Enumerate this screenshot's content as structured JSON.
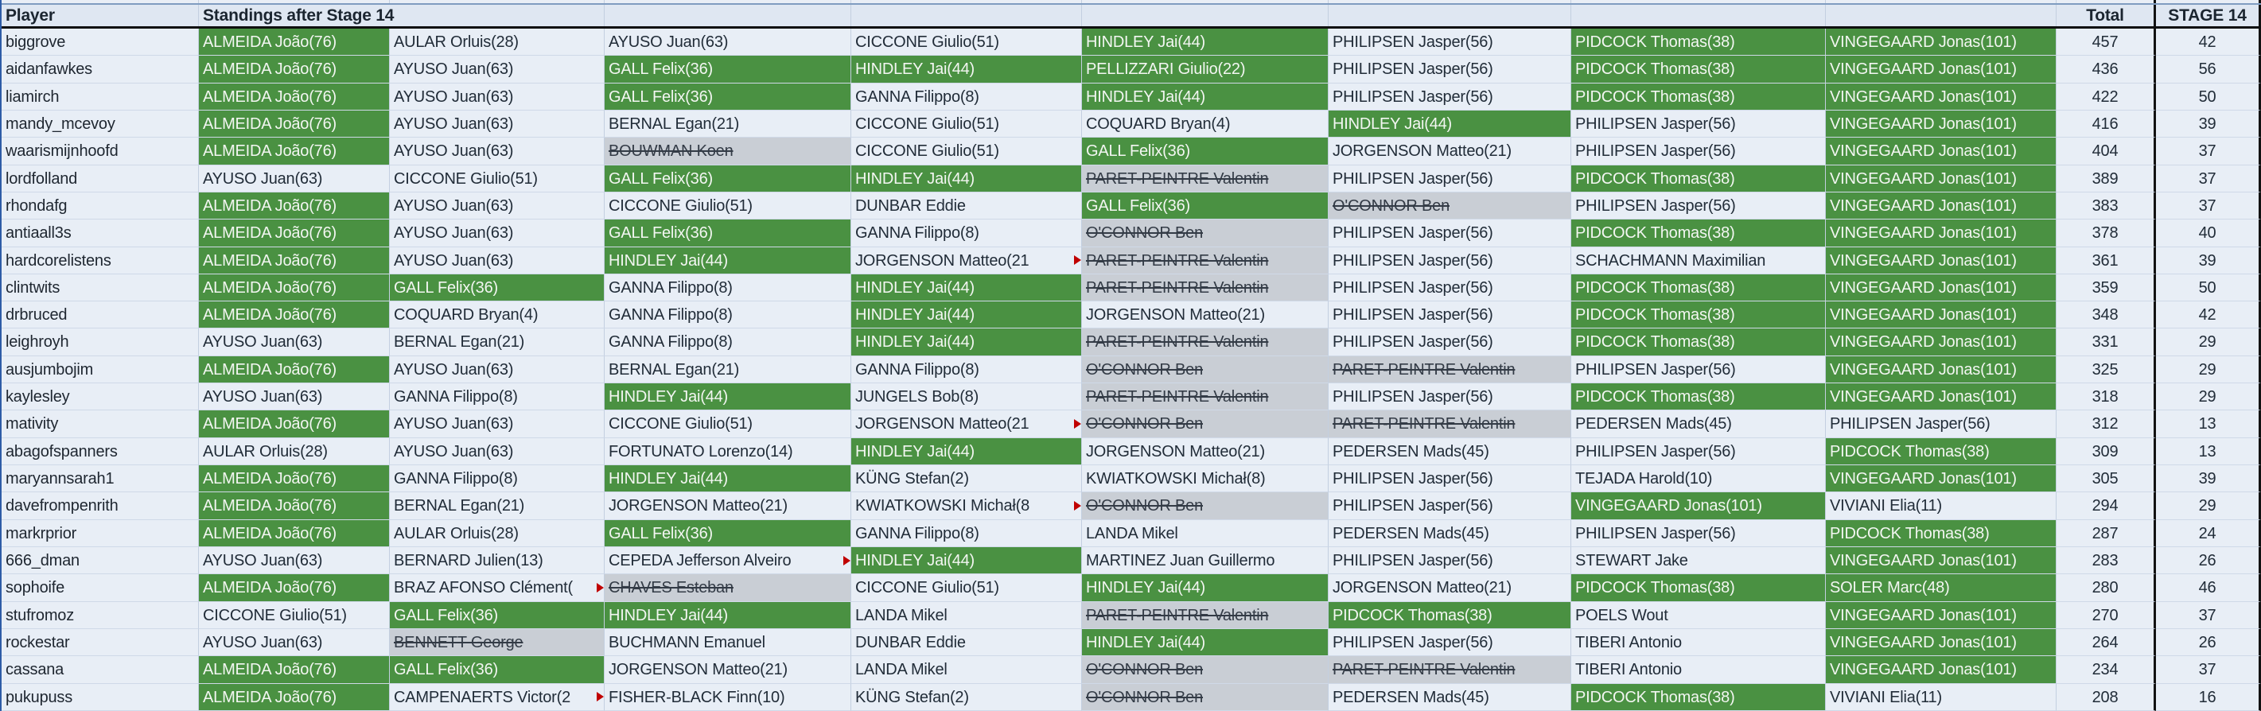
{
  "header": {
    "player": "Player",
    "standings_title": "Standings after Stage 14",
    "total": "Total",
    "stage": "STAGE 14"
  },
  "legend": {
    "green_cell_meaning_color": "#4a9142",
    "eliminated_cell_color": "#c9ced5",
    "truncation_marker_color": "#c00000"
  },
  "rows": [
    {
      "player": "biggrove",
      "picks": [
        {
          "t": "ALMEIDA João(76)",
          "s": "g"
        },
        {
          "t": "AULAR Orluis(28)",
          "s": "n"
        },
        {
          "t": "AYUSO Juan(63)",
          "s": "n"
        },
        {
          "t": "CICCONE Giulio(51)",
          "s": "n"
        },
        {
          "t": "HINDLEY Jai(44)",
          "s": "g"
        },
        {
          "t": "PHILIPSEN Jasper(56)",
          "s": "n"
        },
        {
          "t": "PIDCOCK Thomas(38)",
          "s": "g"
        },
        {
          "t": "VINGEGAARD Jonas(101)",
          "s": "g"
        }
      ],
      "total": "457",
      "stage": "42"
    },
    {
      "player": "aidanfawkes",
      "picks": [
        {
          "t": "ALMEIDA João(76)",
          "s": "g"
        },
        {
          "t": "AYUSO Juan(63)",
          "s": "n"
        },
        {
          "t": "GALL Felix(36)",
          "s": "g"
        },
        {
          "t": "HINDLEY Jai(44)",
          "s": "g"
        },
        {
          "t": "PELLIZZARI Giulio(22)",
          "s": "g"
        },
        {
          "t": "PHILIPSEN Jasper(56)",
          "s": "n"
        },
        {
          "t": "PIDCOCK Thomas(38)",
          "s": "g"
        },
        {
          "t": "VINGEGAARD Jonas(101)",
          "s": "g"
        }
      ],
      "total": "436",
      "stage": "56"
    },
    {
      "player": "liamirch",
      "picks": [
        {
          "t": "ALMEIDA João(76)",
          "s": "g"
        },
        {
          "t": "AYUSO Juan(63)",
          "s": "n"
        },
        {
          "t": "GALL Felix(36)",
          "s": "g"
        },
        {
          "t": "GANNA Filippo(8)",
          "s": "n"
        },
        {
          "t": "HINDLEY Jai(44)",
          "s": "g"
        },
        {
          "t": "PHILIPSEN Jasper(56)",
          "s": "n"
        },
        {
          "t": "PIDCOCK Thomas(38)",
          "s": "g"
        },
        {
          "t": "VINGEGAARD Jonas(101)",
          "s": "g"
        }
      ],
      "total": "422",
      "stage": "50"
    },
    {
      "player": "mandy_mcevoy",
      "picks": [
        {
          "t": "ALMEIDA João(76)",
          "s": "g"
        },
        {
          "t": "AYUSO Juan(63)",
          "s": "n"
        },
        {
          "t": "BERNAL Egan(21)",
          "s": "n"
        },
        {
          "t": "CICCONE Giulio(51)",
          "s": "n"
        },
        {
          "t": "COQUARD Bryan(4)",
          "s": "n"
        },
        {
          "t": "HINDLEY Jai(44)",
          "s": "g"
        },
        {
          "t": "PHILIPSEN Jasper(56)",
          "s": "n"
        },
        {
          "t": "VINGEGAARD Jonas(101)",
          "s": "g"
        }
      ],
      "total": "416",
      "stage": "39"
    },
    {
      "player": "waarismijnhoofd",
      "picks": [
        {
          "t": "ALMEIDA João(76)",
          "s": "g"
        },
        {
          "t": "AYUSO Juan(63)",
          "s": "n"
        },
        {
          "t": "BOUWMAN Koen",
          "s": "x"
        },
        {
          "t": "CICCONE Giulio(51)",
          "s": "n"
        },
        {
          "t": "GALL Felix(36)",
          "s": "g"
        },
        {
          "t": "JORGENSON Matteo(21)",
          "s": "n"
        },
        {
          "t": "PHILIPSEN Jasper(56)",
          "s": "n"
        },
        {
          "t": "VINGEGAARD Jonas(101)",
          "s": "g"
        }
      ],
      "total": "404",
      "stage": "37"
    },
    {
      "player": "lordfolland",
      "picks": [
        {
          "t": "AYUSO Juan(63)",
          "s": "n"
        },
        {
          "t": "CICCONE Giulio(51)",
          "s": "n"
        },
        {
          "t": "GALL Felix(36)",
          "s": "g"
        },
        {
          "t": "HINDLEY Jai(44)",
          "s": "g"
        },
        {
          "t": "PARET-PEINTRE Valentin",
          "s": "x"
        },
        {
          "t": "PHILIPSEN Jasper(56)",
          "s": "n"
        },
        {
          "t": "PIDCOCK Thomas(38)",
          "s": "g"
        },
        {
          "t": "VINGEGAARD Jonas(101)",
          "s": "g"
        }
      ],
      "total": "389",
      "stage": "37"
    },
    {
      "player": "rhondafg",
      "picks": [
        {
          "t": "ALMEIDA João(76)",
          "s": "g"
        },
        {
          "t": "AYUSO Juan(63)",
          "s": "n"
        },
        {
          "t": "CICCONE Giulio(51)",
          "s": "n"
        },
        {
          "t": "DUNBAR Eddie",
          "s": "n"
        },
        {
          "t": "GALL Felix(36)",
          "s": "g"
        },
        {
          "t": "O'CONNOR Ben",
          "s": "x"
        },
        {
          "t": "PHILIPSEN Jasper(56)",
          "s": "n"
        },
        {
          "t": "VINGEGAARD Jonas(101)",
          "s": "g"
        }
      ],
      "total": "383",
      "stage": "37"
    },
    {
      "player": "antiaall3s",
      "picks": [
        {
          "t": "ALMEIDA João(76)",
          "s": "g"
        },
        {
          "t": "AYUSO Juan(63)",
          "s": "n"
        },
        {
          "t": "GALL Felix(36)",
          "s": "g"
        },
        {
          "t": "GANNA Filippo(8)",
          "s": "n"
        },
        {
          "t": "O'CONNOR Ben",
          "s": "x"
        },
        {
          "t": "PHILIPSEN Jasper(56)",
          "s": "n"
        },
        {
          "t": "PIDCOCK Thomas(38)",
          "s": "g"
        },
        {
          "t": "VINGEGAARD Jonas(101)",
          "s": "g"
        }
      ],
      "total": "378",
      "stage": "40"
    },
    {
      "player": "hardcorelistens",
      "picks": [
        {
          "t": "ALMEIDA João(76)",
          "s": "g"
        },
        {
          "t": "AYUSO Juan(63)",
          "s": "n"
        },
        {
          "t": "HINDLEY Jai(44)",
          "s": "g"
        },
        {
          "t": "JORGENSON Matteo(21",
          "s": "n",
          "cut": true
        },
        {
          "t": "PARET-PEINTRE Valentin",
          "s": "x"
        },
        {
          "t": "PHILIPSEN Jasper(56)",
          "s": "n"
        },
        {
          "t": "SCHACHMANN Maximilian",
          "s": "n"
        },
        {
          "t": "VINGEGAARD Jonas(101)",
          "s": "g"
        }
      ],
      "total": "361",
      "stage": "39"
    },
    {
      "player": "clintwits",
      "picks": [
        {
          "t": "ALMEIDA João(76)",
          "s": "g"
        },
        {
          "t": "GALL Felix(36)",
          "s": "g"
        },
        {
          "t": "GANNA Filippo(8)",
          "s": "n"
        },
        {
          "t": "HINDLEY Jai(44)",
          "s": "g"
        },
        {
          "t": "PARET-PEINTRE Valentin",
          "s": "x"
        },
        {
          "t": "PHILIPSEN Jasper(56)",
          "s": "n"
        },
        {
          "t": "PIDCOCK Thomas(38)",
          "s": "g"
        },
        {
          "t": "VINGEGAARD Jonas(101)",
          "s": "g"
        }
      ],
      "total": "359",
      "stage": "50"
    },
    {
      "player": "drbruced",
      "picks": [
        {
          "t": "ALMEIDA João(76)",
          "s": "g"
        },
        {
          "t": "COQUARD Bryan(4)",
          "s": "n"
        },
        {
          "t": "GANNA Filippo(8)",
          "s": "n"
        },
        {
          "t": "HINDLEY Jai(44)",
          "s": "g"
        },
        {
          "t": "JORGENSON Matteo(21)",
          "s": "n"
        },
        {
          "t": "PHILIPSEN Jasper(56)",
          "s": "n"
        },
        {
          "t": "PIDCOCK Thomas(38)",
          "s": "g"
        },
        {
          "t": "VINGEGAARD Jonas(101)",
          "s": "g"
        }
      ],
      "total": "348",
      "stage": "42"
    },
    {
      "player": "leighroyh",
      "picks": [
        {
          "t": "AYUSO Juan(63)",
          "s": "n"
        },
        {
          "t": "BERNAL Egan(21)",
          "s": "n"
        },
        {
          "t": "GANNA Filippo(8)",
          "s": "n"
        },
        {
          "t": "HINDLEY Jai(44)",
          "s": "g"
        },
        {
          "t": "PARET-PEINTRE Valentin",
          "s": "x"
        },
        {
          "t": "PHILIPSEN Jasper(56)",
          "s": "n"
        },
        {
          "t": "PIDCOCK Thomas(38)",
          "s": "g"
        },
        {
          "t": "VINGEGAARD Jonas(101)",
          "s": "g"
        }
      ],
      "total": "331",
      "stage": "29"
    },
    {
      "player": "ausjumbojim",
      "picks": [
        {
          "t": "ALMEIDA João(76)",
          "s": "g"
        },
        {
          "t": "AYUSO Juan(63)",
          "s": "n"
        },
        {
          "t": "BERNAL Egan(21)",
          "s": "n"
        },
        {
          "t": "GANNA Filippo(8)",
          "s": "n"
        },
        {
          "t": "O'CONNOR Ben",
          "s": "x"
        },
        {
          "t": "PARET-PEINTRE Valentin",
          "s": "x"
        },
        {
          "t": "PHILIPSEN Jasper(56)",
          "s": "n"
        },
        {
          "t": "VINGEGAARD Jonas(101)",
          "s": "g"
        }
      ],
      "total": "325",
      "stage": "29"
    },
    {
      "player": "kaylesley",
      "picks": [
        {
          "t": "AYUSO Juan(63)",
          "s": "n"
        },
        {
          "t": "GANNA Filippo(8)",
          "s": "n"
        },
        {
          "t": "HINDLEY Jai(44)",
          "s": "g"
        },
        {
          "t": "JUNGELS Bob(8)",
          "s": "n"
        },
        {
          "t": "PARET-PEINTRE Valentin",
          "s": "x"
        },
        {
          "t": "PHILIPSEN Jasper(56)",
          "s": "n"
        },
        {
          "t": "PIDCOCK Thomas(38)",
          "s": "g"
        },
        {
          "t": "VINGEGAARD Jonas(101)",
          "s": "g"
        }
      ],
      "total": "318",
      "stage": "29"
    },
    {
      "player": "mativity",
      "picks": [
        {
          "t": "ALMEIDA João(76)",
          "s": "g"
        },
        {
          "t": "AYUSO Juan(63)",
          "s": "n"
        },
        {
          "t": "CICCONE Giulio(51)",
          "s": "n"
        },
        {
          "t": "JORGENSON Matteo(21",
          "s": "n",
          "cut": true
        },
        {
          "t": "O'CONNOR Ben",
          "s": "x"
        },
        {
          "t": "PARET-PEINTRE Valentin",
          "s": "x"
        },
        {
          "t": "PEDERSEN Mads(45)",
          "s": "n"
        },
        {
          "t": "PHILIPSEN Jasper(56)",
          "s": "n"
        }
      ],
      "total": "312",
      "stage": "13"
    },
    {
      "player": "abagofspanners",
      "picks": [
        {
          "t": "AULAR Orluis(28)",
          "s": "n"
        },
        {
          "t": "AYUSO Juan(63)",
          "s": "n"
        },
        {
          "t": "FORTUNATO Lorenzo(14)",
          "s": "n"
        },
        {
          "t": "HINDLEY Jai(44)",
          "s": "g"
        },
        {
          "t": "JORGENSON Matteo(21)",
          "s": "n"
        },
        {
          "t": "PEDERSEN Mads(45)",
          "s": "n"
        },
        {
          "t": "PHILIPSEN Jasper(56)",
          "s": "n"
        },
        {
          "t": "PIDCOCK Thomas(38)",
          "s": "g"
        }
      ],
      "total": "309",
      "stage": "13"
    },
    {
      "player": "maryannsarah1",
      "picks": [
        {
          "t": "ALMEIDA João(76)",
          "s": "g"
        },
        {
          "t": "GANNA Filippo(8)",
          "s": "n"
        },
        {
          "t": "HINDLEY Jai(44)",
          "s": "g"
        },
        {
          "t": "KÜNG Stefan(2)",
          "s": "n"
        },
        {
          "t": "KWIATKOWSKI Michał(8)",
          "s": "n"
        },
        {
          "t": "PHILIPSEN Jasper(56)",
          "s": "n"
        },
        {
          "t": "TEJADA Harold(10)",
          "s": "n"
        },
        {
          "t": "VINGEGAARD Jonas(101)",
          "s": "g"
        }
      ],
      "total": "305",
      "stage": "39"
    },
    {
      "player": "davefrompenrith",
      "picks": [
        {
          "t": "ALMEIDA João(76)",
          "s": "g"
        },
        {
          "t": "BERNAL Egan(21)",
          "s": "n"
        },
        {
          "t": "JORGENSON Matteo(21)",
          "s": "n"
        },
        {
          "t": "KWIATKOWSKI Michał(8",
          "s": "n",
          "cut": true
        },
        {
          "t": "O'CONNOR Ben",
          "s": "x"
        },
        {
          "t": "PHILIPSEN Jasper(56)",
          "s": "n"
        },
        {
          "t": "VINGEGAARD Jonas(101)",
          "s": "g"
        },
        {
          "t": "VIVIANI Elia(11)",
          "s": "n"
        }
      ],
      "total": "294",
      "stage": "29"
    },
    {
      "player": "markrprior",
      "picks": [
        {
          "t": "ALMEIDA João(76)",
          "s": "g"
        },
        {
          "t": "AULAR Orluis(28)",
          "s": "n"
        },
        {
          "t": "GALL Felix(36)",
          "s": "g"
        },
        {
          "t": "GANNA Filippo(8)",
          "s": "n"
        },
        {
          "t": "LANDA Mikel",
          "s": "n"
        },
        {
          "t": "PEDERSEN Mads(45)",
          "s": "n"
        },
        {
          "t": "PHILIPSEN Jasper(56)",
          "s": "n"
        },
        {
          "t": "PIDCOCK Thomas(38)",
          "s": "g"
        }
      ],
      "total": "287",
      "stage": "24"
    },
    {
      "player": "666_dman",
      "picks": [
        {
          "t": "AYUSO Juan(63)",
          "s": "n"
        },
        {
          "t": "BERNARD Julien(13)",
          "s": "n"
        },
        {
          "t": "CEPEDA Jefferson Alveiro",
          "s": "n",
          "cut": true
        },
        {
          "t": "HINDLEY Jai(44)",
          "s": "g"
        },
        {
          "t": "MARTINEZ Juan Guillermo",
          "s": "n"
        },
        {
          "t": "PHILIPSEN Jasper(56)",
          "s": "n"
        },
        {
          "t": "STEWART Jake",
          "s": "n"
        },
        {
          "t": "VINGEGAARD Jonas(101)",
          "s": "g"
        }
      ],
      "total": "283",
      "stage": "26"
    },
    {
      "player": "sophoife",
      "picks": [
        {
          "t": "ALMEIDA João(76)",
          "s": "g"
        },
        {
          "t": "BRAZ AFONSO Clément(",
          "s": "n",
          "cut": true
        },
        {
          "t": "CHAVES Esteban",
          "s": "x"
        },
        {
          "t": "CICCONE Giulio(51)",
          "s": "n"
        },
        {
          "t": "HINDLEY Jai(44)",
          "s": "g"
        },
        {
          "t": "JORGENSON Matteo(21)",
          "s": "n"
        },
        {
          "t": "PIDCOCK Thomas(38)",
          "s": "g"
        },
        {
          "t": "SOLER Marc(48)",
          "s": "g"
        }
      ],
      "total": "280",
      "stage": "46"
    },
    {
      "player": "stufromoz",
      "picks": [
        {
          "t": "CICCONE Giulio(51)",
          "s": "n"
        },
        {
          "t": "GALL Felix(36)",
          "s": "g"
        },
        {
          "t": "HINDLEY Jai(44)",
          "s": "g"
        },
        {
          "t": "LANDA Mikel",
          "s": "n"
        },
        {
          "t": "PARET-PEINTRE Valentin",
          "s": "x"
        },
        {
          "t": "PIDCOCK Thomas(38)",
          "s": "g"
        },
        {
          "t": "POELS Wout",
          "s": "n"
        },
        {
          "t": "VINGEGAARD Jonas(101)",
          "s": "g"
        }
      ],
      "total": "270",
      "stage": "37"
    },
    {
      "player": "rockestar",
      "picks": [
        {
          "t": "AYUSO Juan(63)",
          "s": "n"
        },
        {
          "t": "BENNETT George",
          "s": "x"
        },
        {
          "t": "BUCHMANN Emanuel",
          "s": "n"
        },
        {
          "t": "DUNBAR Eddie",
          "s": "n"
        },
        {
          "t": "HINDLEY Jai(44)",
          "s": "g"
        },
        {
          "t": "PHILIPSEN Jasper(56)",
          "s": "n"
        },
        {
          "t": "TIBERI Antonio",
          "s": "n"
        },
        {
          "t": "VINGEGAARD Jonas(101)",
          "s": "g"
        }
      ],
      "total": "264",
      "stage": "26"
    },
    {
      "player": "cassana",
      "picks": [
        {
          "t": "ALMEIDA João(76)",
          "s": "g"
        },
        {
          "t": "GALL Felix(36)",
          "s": "g"
        },
        {
          "t": "JORGENSON Matteo(21)",
          "s": "n"
        },
        {
          "t": "LANDA Mikel",
          "s": "n"
        },
        {
          "t": "O'CONNOR Ben",
          "s": "x"
        },
        {
          "t": "PARET-PEINTRE Valentin",
          "s": "x"
        },
        {
          "t": "TIBERI Antonio",
          "s": "n"
        },
        {
          "t": "VINGEGAARD Jonas(101)",
          "s": "g"
        }
      ],
      "total": "234",
      "stage": "37"
    },
    {
      "player": "pukupuss",
      "picks": [
        {
          "t": "ALMEIDA João(76)",
          "s": "g"
        },
        {
          "t": "CAMPENAERTS Victor(2",
          "s": "n",
          "cut": true
        },
        {
          "t": "FISHER-BLACK Finn(10)",
          "s": "n"
        },
        {
          "t": "KÜNG Stefan(2)",
          "s": "n"
        },
        {
          "t": "O'CONNOR Ben",
          "s": "x"
        },
        {
          "t": "PEDERSEN Mads(45)",
          "s": "n"
        },
        {
          "t": "PIDCOCK Thomas(38)",
          "s": "g"
        },
        {
          "t": "VIVIANI Elia(11)",
          "s": "n"
        }
      ],
      "total": "208",
      "stage": "16"
    }
  ]
}
